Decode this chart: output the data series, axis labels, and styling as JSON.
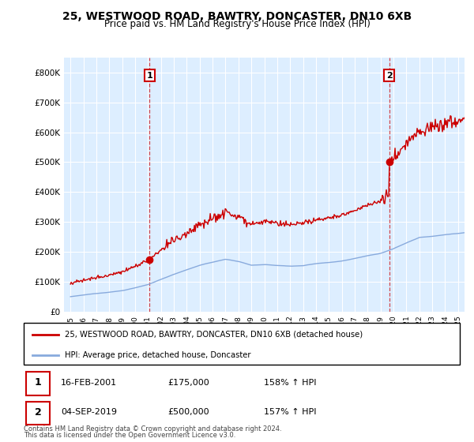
{
  "title": "25, WESTWOOD ROAD, BAWTRY, DONCASTER, DN10 6XB",
  "subtitle": "Price paid vs. HM Land Registry's House Price Index (HPI)",
  "legend_line1": "25, WESTWOOD ROAD, BAWTRY, DONCASTER, DN10 6XB (detached house)",
  "legend_line2": "HPI: Average price, detached house, Doncaster",
  "footnote1": "Contains HM Land Registry data © Crown copyright and database right 2024.",
  "footnote2": "This data is licensed under the Open Government Licence v3.0.",
  "point1_date": "16-FEB-2001",
  "point1_price": "£175,000",
  "point1_hpi": "158% ↑ HPI",
  "point2_date": "04-SEP-2019",
  "point2_price": "£500,000",
  "point2_hpi": "157% ↑ HPI",
  "red_color": "#cc0000",
  "blue_color": "#88aadd",
  "fill_color": "#ddeeff",
  "background_color": "#ffffff",
  "grid_color": "#cccccc",
  "ylim": [
    0,
    850000
  ],
  "xlim_start": 1994.5,
  "xlim_end": 2025.5,
  "t1": 2001.125,
  "t2": 2019.667,
  "p1": 175000,
  "p2": 500000
}
